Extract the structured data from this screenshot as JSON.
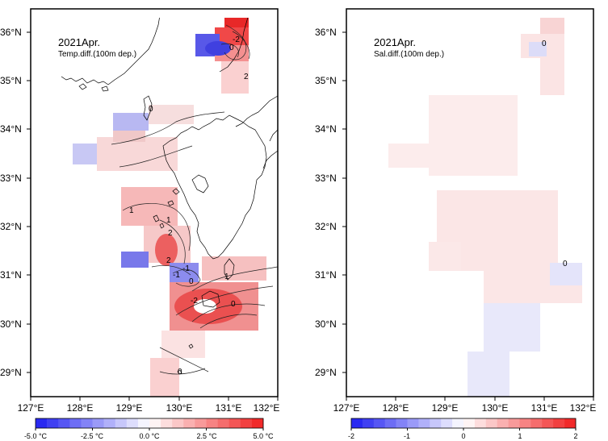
{
  "maps": [
    {
      "id": "temp",
      "title": "2021Apr.",
      "subtitle": "Temp.diff.(100m dep.)",
      "lat_labels": [
        "36°N",
        "35°N",
        "34°N",
        "33°N",
        "32°N",
        "31°N",
        "30°N",
        "29°N"
      ],
      "lon_labels": [
        "127°E",
        "128°E",
        "129°E",
        "130°E",
        "131°E",
        "132°E"
      ],
      "colorbar": {
        "min": -5.0,
        "max": 5.0,
        "bins": 20,
        "low_color": "#1e1ef0",
        "mid_color": "#ffffff",
        "high_color": "#f01e1e",
        "tick_labels": [
          "-5.0 °C",
          "-2.5 °C",
          "0.0 °C",
          "2.5 °C",
          "5.0 °C"
        ]
      },
      "contour_labels": [
        "0",
        "-2",
        "2",
        "0",
        "1",
        "1",
        "2",
        "2",
        "-1",
        "-1",
        "0",
        "-2",
        "1",
        "0",
        "0"
      ]
    },
    {
      "id": "sal",
      "title": "2021Apr.",
      "subtitle": "Sal.diff.(100m dep.)",
      "lat_labels": [
        "36°N",
        "35°N",
        "34°N",
        "33°N",
        "32°N",
        "31°N",
        "30°N",
        "29°N"
      ],
      "lon_labels": [
        "127°E",
        "128°E",
        "129°E",
        "130°E",
        "131°E",
        "132°E"
      ],
      "colorbar": {
        "min": -2,
        "max": 2,
        "bins": 20,
        "low_color": "#1e1ef0",
        "mid_color": "#ffffff",
        "high_color": "#f01e1e",
        "tick_labels": [
          "-2",
          "-1",
          "0",
          "1",
          "2"
        ]
      },
      "contour_labels": [
        "0",
        "0"
      ]
    }
  ]
}
